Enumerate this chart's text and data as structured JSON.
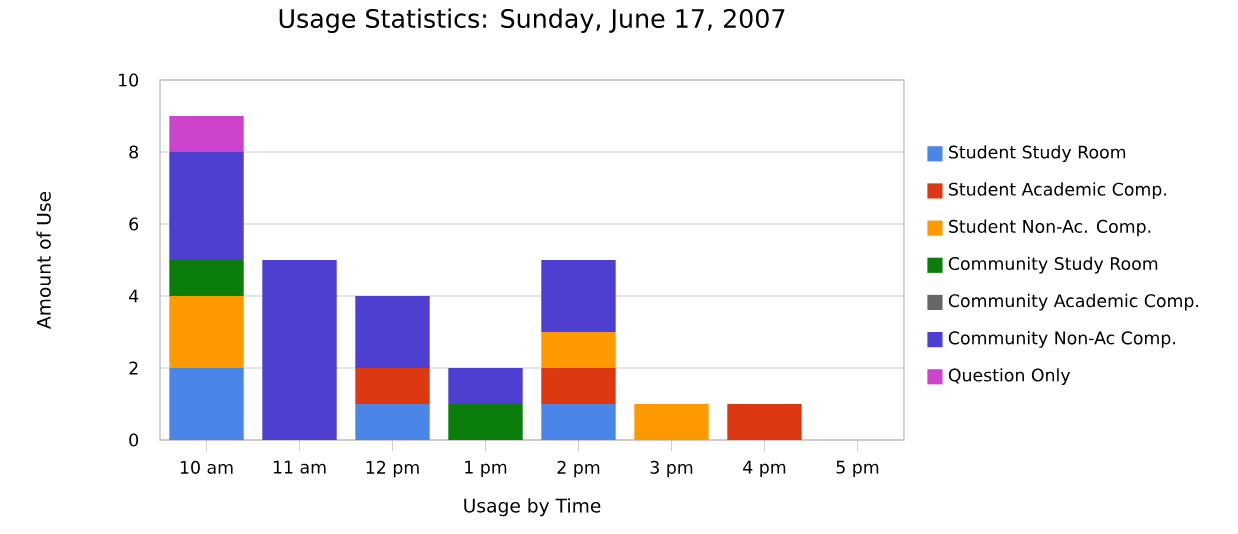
{
  "chart_data": {
    "type": "bar",
    "title": "Usage Statistics: Sunday, June 17, 2007",
    "xlabel": "Usage by Time",
    "ylabel": "Amount of Use",
    "categories": [
      "10 am",
      "11 am",
      "12 pm",
      "1 pm",
      "2 pm",
      "3 pm",
      "4 pm",
      "5 pm"
    ],
    "stacked": true,
    "ylim": [
      0,
      10
    ],
    "yticks": [
      0,
      2,
      4,
      6,
      8,
      10
    ],
    "grid": "y",
    "legend": "right",
    "series": [
      {
        "name": "Student Study Room",
        "color": "#4a86e8",
        "values": [
          2,
          0,
          1,
          0,
          1,
          0,
          0,
          0
        ]
      },
      {
        "name": "Student Academic Comp.",
        "color": "#dc3912",
        "values": [
          0,
          0,
          1,
          0,
          1,
          0,
          1,
          0
        ]
      },
      {
        "name": "Student Non-Ac. Comp.",
        "color": "#ff9900",
        "values": [
          2,
          0,
          0,
          0,
          1,
          1,
          0,
          0
        ]
      },
      {
        "name": "Community Study Room",
        "color": "#0a7d0a",
        "values": [
          1,
          0,
          0,
          1,
          0,
          0,
          0,
          0
        ]
      },
      {
        "name": "Community Academic Comp.",
        "color": "#666666",
        "values": [
          0,
          0,
          0,
          0,
          0,
          0,
          0,
          0
        ]
      },
      {
        "name": "Community Non-Ac Comp.",
        "color": "#4f3fd1",
        "values": [
          3,
          5,
          2,
          1,
          2,
          0,
          0,
          0
        ]
      },
      {
        "name": "Question Only",
        "color": "#cc44cc",
        "values": [
          1,
          0,
          0,
          0,
          0,
          0,
          0,
          0
        ]
      }
    ]
  }
}
